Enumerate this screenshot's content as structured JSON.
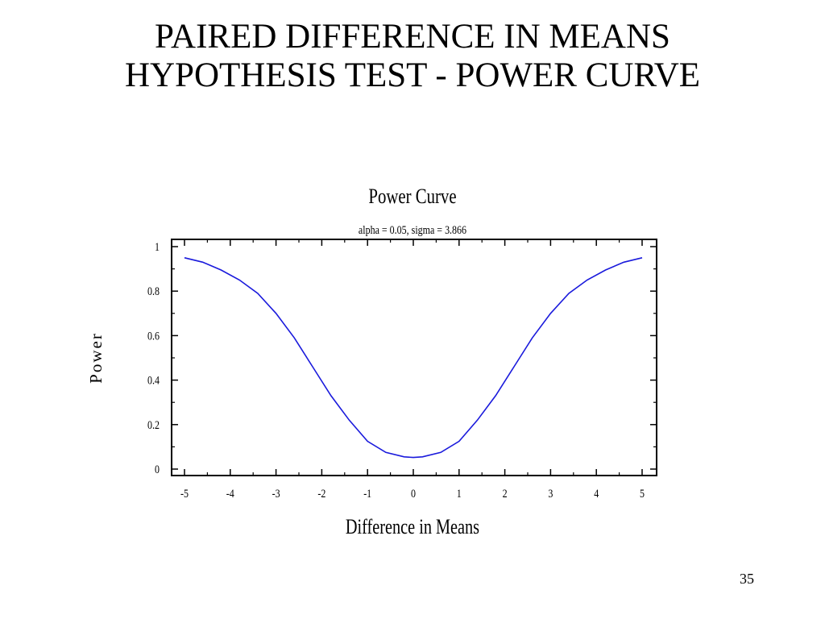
{
  "slide": {
    "title_line1": "PAIRED DIFFERENCE IN MEANS",
    "title_line2": "HYPOTHESIS TEST - POWER CURVE",
    "page_number": "35"
  },
  "chart_data": {
    "type": "line",
    "title": "Power Curve",
    "subtitle": "alpha = 0.05, sigma = 3.866",
    "xlabel": "Difference in Means",
    "ylabel": "Power",
    "xlim": [
      -5,
      5
    ],
    "ylim": [
      0,
      1
    ],
    "xticks": [
      "-5",
      "-4",
      "-3",
      "-2",
      "-1",
      "0",
      "1",
      "2",
      "3",
      "4",
      "5"
    ],
    "yticks": [
      "0",
      "0.2",
      "0.4",
      "0.6",
      "0.8",
      "1"
    ],
    "grid": false,
    "line_color": "#1a1adc",
    "series": [
      {
        "x": [
          -5,
          -4.6,
          -4.2,
          -3.8,
          -3.4,
          -3.0,
          -2.6,
          -2.2,
          -1.8,
          -1.4,
          -1.0,
          -0.6,
          -0.2,
          0,
          0.2,
          0.6,
          1.0,
          1.4,
          1.8,
          2.2,
          2.6,
          3.0,
          3.4,
          3.8,
          4.2,
          4.6,
          5
        ],
        "y": [
          0.95,
          0.93,
          0.895,
          0.85,
          0.79,
          0.7,
          0.59,
          0.46,
          0.33,
          0.22,
          0.125,
          0.075,
          0.055,
          0.052,
          0.055,
          0.075,
          0.125,
          0.22,
          0.33,
          0.46,
          0.59,
          0.7,
          0.79,
          0.85,
          0.895,
          0.93,
          0.95
        ]
      }
    ]
  }
}
